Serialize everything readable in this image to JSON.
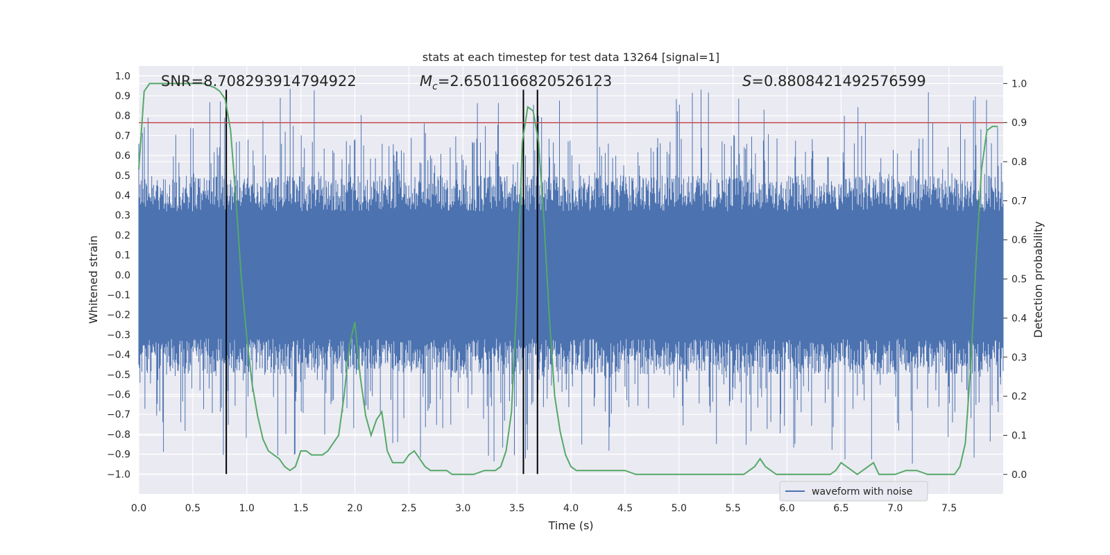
{
  "chart_data": {
    "type": "line",
    "title": "stats at each timestep for test data 13264 [signal=1]",
    "xlabel": "Time (s)",
    "ylabel": "Whitened strain",
    "y2label": "Detection probability",
    "xlim": [
      0.0,
      8.0
    ],
    "ylim": [
      -1.1,
      1.05
    ],
    "y2lim": [
      -0.05,
      1.045
    ],
    "xticks": [
      "0.0",
      "0.5",
      "1.0",
      "1.5",
      "2.0",
      "2.5",
      "3.0",
      "3.5",
      "4.0",
      "4.5",
      "5.0",
      "5.5",
      "6.0",
      "6.5",
      "7.0",
      "7.5"
    ],
    "yticks": [
      "1.0",
      "0.9",
      "0.8",
      "0.7",
      "0.6",
      "0.5",
      "0.4",
      "0.3",
      "0.2",
      "0.1",
      "0.0",
      "−0.1",
      "−0.2",
      "−0.3",
      "−0.4",
      "−0.5",
      "−0.6",
      "−0.7",
      "−0.8",
      "−0.9",
      "−1.0"
    ],
    "y2ticks": [
      "1.0",
      "0.9",
      "0.8",
      "0.7",
      "0.6",
      "0.5",
      "0.4",
      "0.3",
      "0.2",
      "0.1",
      "0.0"
    ],
    "threshold": 0.9,
    "event_times": [
      0.81,
      3.56,
      3.69
    ],
    "annotations": {
      "snr": "SNR=8.708293914794922",
      "mc_symbol": "M",
      "mc_sub": "c",
      "mc_value": "=2.6501166820526123",
      "s_symbol": "S",
      "s_value": "=0.8808421492576599"
    },
    "legend": [
      "waveform with noise"
    ],
    "series": [
      {
        "name": "waveform with noise",
        "color": "#4c72b0",
        "note": "high-frequency noise envelope approx ±0.5, spikes to ±0.95"
      },
      {
        "name": "detection probability",
        "color": "#55a868",
        "x": [
          0.0,
          0.05,
          0.1,
          0.15,
          0.2,
          0.3,
          0.4,
          0.5,
          0.6,
          0.7,
          0.75,
          0.8,
          0.85,
          0.9,
          0.95,
          1.0,
          1.05,
          1.1,
          1.15,
          1.2,
          1.25,
          1.3,
          1.35,
          1.4,
          1.45,
          1.5,
          1.55,
          1.6,
          1.65,
          1.7,
          1.75,
          1.8,
          1.85,
          1.9,
          1.95,
          2.0,
          2.05,
          2.1,
          2.15,
          2.2,
          2.25,
          2.3,
          2.35,
          2.4,
          2.45,
          2.5,
          2.55,
          2.6,
          2.65,
          2.7,
          2.75,
          2.8,
          2.85,
          2.9,
          2.95,
          3.0,
          3.1,
          3.2,
          3.3,
          3.35,
          3.4,
          3.45,
          3.5,
          3.55,
          3.6,
          3.65,
          3.7,
          3.75,
          3.8,
          3.85,
          3.9,
          3.95,
          4.0,
          4.05,
          4.1,
          4.15,
          4.2,
          4.3,
          4.4,
          4.5,
          4.6,
          4.7,
          4.8,
          4.9,
          5.0,
          5.2,
          5.4,
          5.5,
          5.6,
          5.65,
          5.7,
          5.75,
          5.8,
          5.85,
          5.9,
          6.0,
          6.2,
          6.4,
          6.45,
          6.5,
          6.55,
          6.6,
          6.65,
          6.7,
          6.75,
          6.8,
          6.85,
          6.9,
          7.0,
          7.1,
          7.2,
          7.3,
          7.4,
          7.5,
          7.55,
          7.6,
          7.65,
          7.7,
          7.75,
          7.8,
          7.85,
          7.9,
          7.95
        ],
        "values": [
          0.78,
          0.98,
          1.0,
          1.0,
          1.0,
          1.0,
          1.0,
          1.0,
          1.0,
          0.99,
          0.98,
          0.96,
          0.88,
          0.7,
          0.5,
          0.35,
          0.23,
          0.15,
          0.09,
          0.06,
          0.05,
          0.04,
          0.02,
          0.01,
          0.02,
          0.06,
          0.06,
          0.05,
          0.05,
          0.05,
          0.06,
          0.08,
          0.1,
          0.2,
          0.33,
          0.39,
          0.25,
          0.15,
          0.1,
          0.14,
          0.16,
          0.06,
          0.03,
          0.03,
          0.03,
          0.05,
          0.06,
          0.04,
          0.02,
          0.01,
          0.01,
          0.01,
          0.01,
          0.0,
          0.0,
          0.0,
          0.0,
          0.01,
          0.01,
          0.02,
          0.06,
          0.16,
          0.45,
          0.85,
          0.94,
          0.93,
          0.85,
          0.65,
          0.4,
          0.2,
          0.11,
          0.05,
          0.02,
          0.01,
          0.01,
          0.01,
          0.01,
          0.01,
          0.01,
          0.01,
          0.0,
          0.0,
          0.0,
          0.0,
          0.0,
          0.0,
          0.0,
          0.0,
          0.0,
          0.01,
          0.02,
          0.04,
          0.02,
          0.01,
          0.0,
          0.0,
          0.0,
          0.0,
          0.01,
          0.03,
          0.02,
          0.01,
          0.0,
          0.01,
          0.02,
          0.03,
          0.0,
          0.0,
          0.0,
          0.01,
          0.01,
          0.0,
          0.0,
          0.0,
          0.0,
          0.02,
          0.08,
          0.28,
          0.55,
          0.78,
          0.88,
          0.89,
          0.89
        ]
      }
    ]
  }
}
